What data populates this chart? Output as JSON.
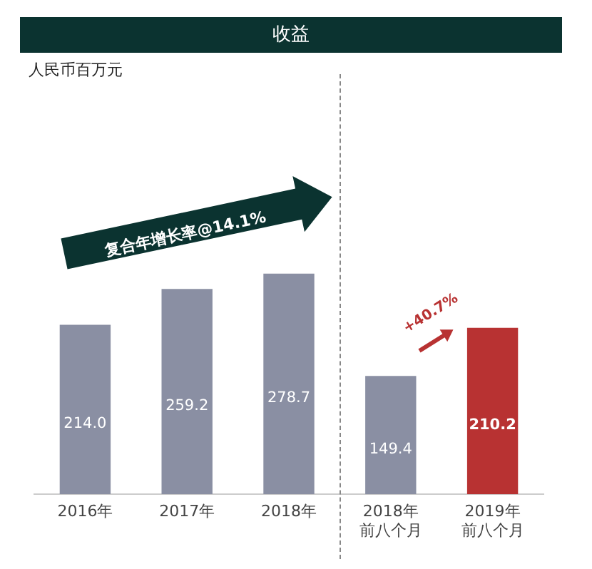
{
  "chart_data": {
    "type": "bar",
    "title": "收益",
    "categories": [
      "2016年",
      "2017年",
      "2018年",
      "2018年前八个月",
      "2019年前八个月"
    ],
    "values": [
      214.0,
      259.2,
      278.7,
      149.4,
      210.2
    ],
    "colors": [
      "#8a8fa3",
      "#8a8fa3",
      "#8a8fa3",
      "#8a8fa3",
      "#b83232"
    ],
    "value_labels": [
      "214.0",
      "259.2",
      "278.7",
      "149.4",
      "210.2"
    ],
    "tick_labels": "x",
    "grid": false,
    "legend": false,
    "annotations": [
      "人民币百万元",
      "复合年增长率@14.1%",
      "+40.7%"
    ]
  }
}
